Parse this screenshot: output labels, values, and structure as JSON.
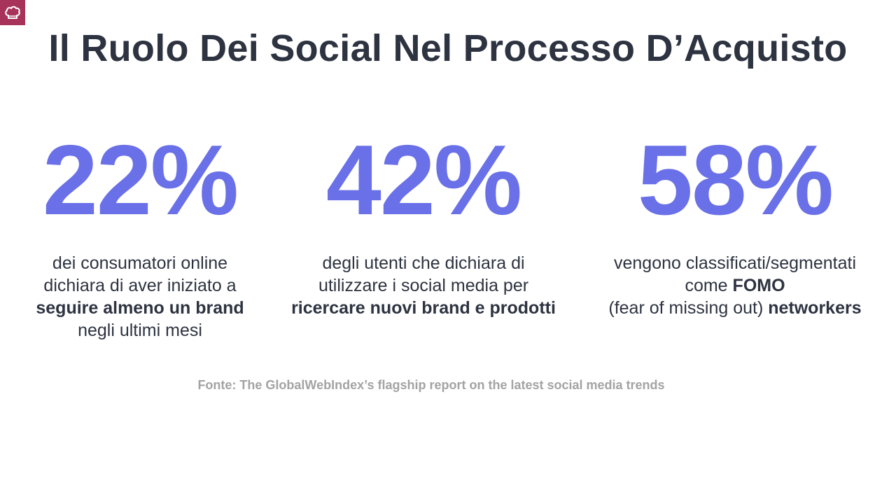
{
  "slide": {
    "title": "Il Ruolo Dei Social Nel Processo D’Acquisto",
    "logo_icon": "chef-hat-icon",
    "accent_color": "#6970e8",
    "logo_color": "#a8335a"
  },
  "stats": [
    {
      "value": "22%",
      "line1": "dei consumatori online",
      "line2": "dichiara di aver iniziato a",
      "line3_bold": "seguire almeno un brand",
      "line4": "negli ultimi mesi"
    },
    {
      "value": "42%",
      "line1": "degli utenti che dichiara di",
      "line2": "utilizzare i social media per",
      "line3_bold": "ricercare nuovi brand e prodotti"
    },
    {
      "value": "58%",
      "line1": "vengono classificati/segmentati",
      "line2_pre": "come ",
      "line2_bold": "FOMO",
      "line3_pre": "(fear of missing out) ",
      "line3_bold": "networkers"
    }
  ],
  "source": "Fonte: The GlobalWebIndex’s flagship report on the latest social media trends"
}
